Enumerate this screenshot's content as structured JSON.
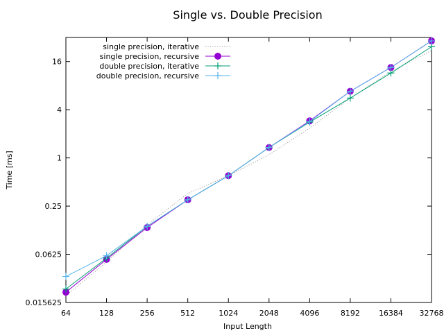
{
  "chart_data": {
    "type": "line",
    "title": "Single vs. Double Precision",
    "xlabel": "Input Length",
    "ylabel": "Time [ms]",
    "x_scale": "log2",
    "y_scale": "log2",
    "x_ticks": [
      "64",
      "128",
      "256",
      "512",
      "1024",
      "2048",
      "4096",
      "8192",
      "16384",
      "32768"
    ],
    "y_ticks": [
      "0.015625",
      "0.0625",
      "0.25",
      "1",
      "4",
      "16"
    ],
    "xlim": [
      64,
      32768
    ],
    "ylim": [
      0.015625,
      32
    ],
    "grid": false,
    "legend_position": "top-left",
    "x": [
      64,
      128,
      256,
      512,
      1024,
      2048,
      4096,
      8192,
      16384,
      32768
    ],
    "series": [
      {
        "name": "single precision, iterative",
        "style": "dotted",
        "marker": "none",
        "color": "#9a9a9a",
        "values": [
          0.019,
          0.05,
          0.145,
          0.36,
          0.6,
          1.1,
          2.35,
          5.6,
          12.0,
          22.0
        ]
      },
      {
        "name": "single precision, recursive",
        "style": "solid",
        "marker": "circle",
        "color": "#9400d3",
        "values": [
          0.021,
          0.054,
          0.135,
          0.3,
          0.6,
          1.35,
          2.9,
          6.8,
          13.5,
          29.0
        ]
      },
      {
        "name": "double precision, iterative",
        "style": "solid",
        "marker": "plus",
        "color": "#009e73",
        "values": [
          0.023,
          0.056,
          0.14,
          0.3,
          0.6,
          1.35,
          2.8,
          5.6,
          11.5,
          24.5
        ]
      },
      {
        "name": "double precision, recursive",
        "style": "solid",
        "marker": "plus",
        "color": "#56b4e9",
        "values": [
          0.033,
          0.06,
          0.14,
          0.3,
          0.6,
          1.35,
          2.85,
          6.8,
          13.5,
          29.0
        ]
      }
    ]
  }
}
